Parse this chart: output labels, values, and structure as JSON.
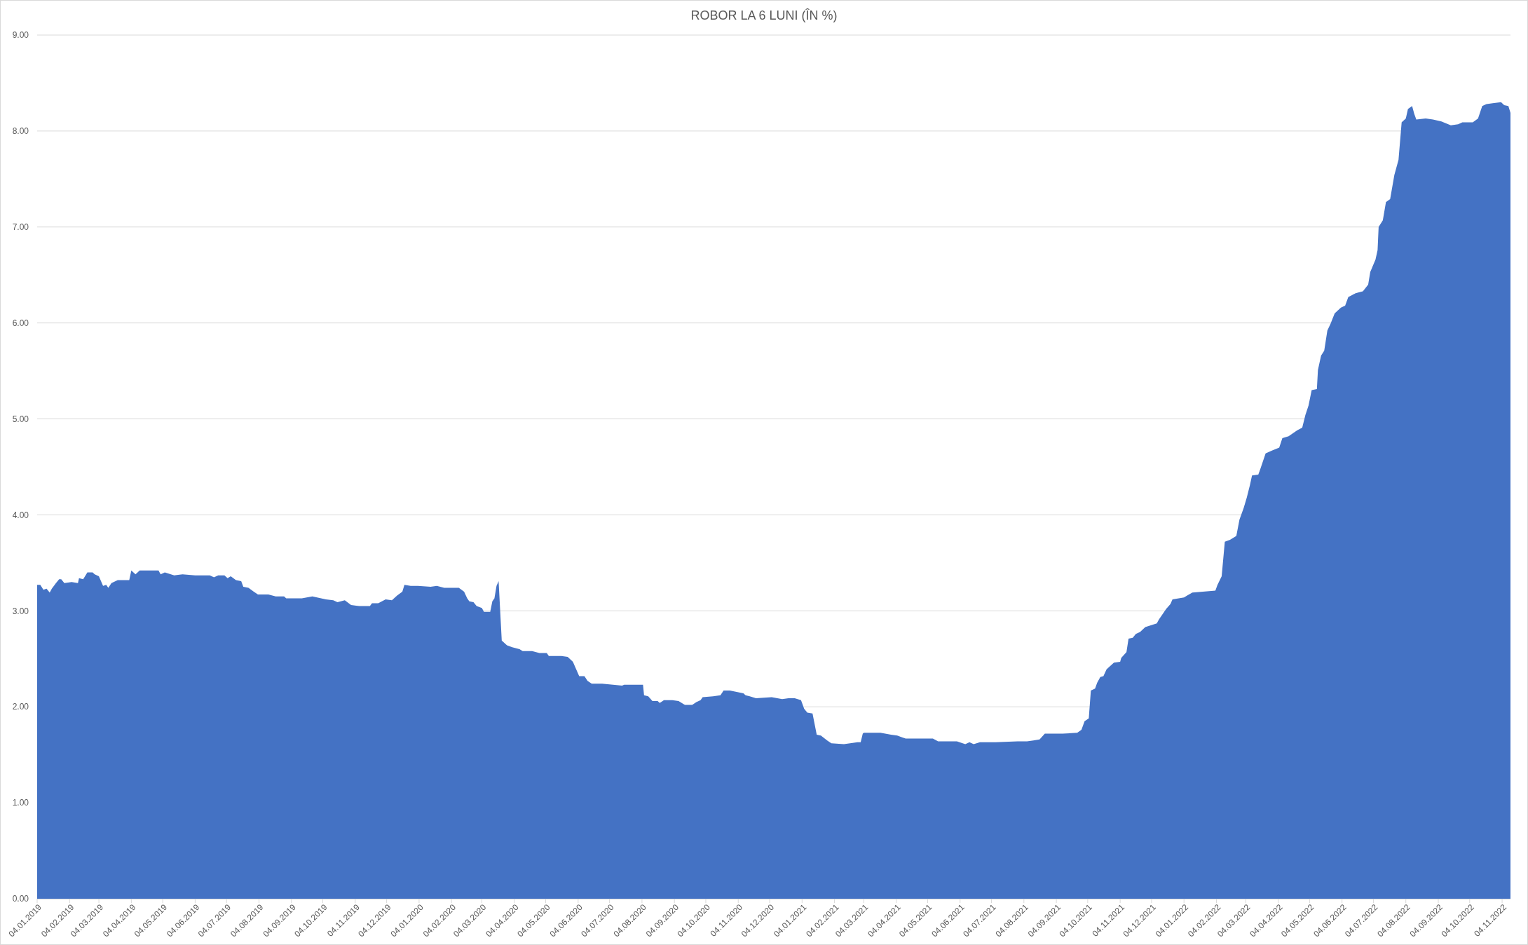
{
  "chart_data": {
    "type": "area",
    "title": "ROBOR LA 6 LUNI (ÎN %)",
    "color": "#4472c4",
    "grid": "y",
    "xlim": [
      "2019-01-04",
      "2022-11-12"
    ],
    "xticks": [
      {
        "value": "2019-01-04",
        "label": "04.01.2019"
      },
      {
        "value": "2019-02-04",
        "label": "04.02.2019"
      },
      {
        "value": "2019-03-04",
        "label": "04.03.2019"
      },
      {
        "value": "2019-04-04",
        "label": "04.04.2019"
      },
      {
        "value": "2019-05-04",
        "label": "04.05.2019"
      },
      {
        "value": "2019-06-04",
        "label": "04.06.2019"
      },
      {
        "value": "2019-07-04",
        "label": "04.07.2019"
      },
      {
        "value": "2019-08-04",
        "label": "04.08.2019"
      },
      {
        "value": "2019-09-04",
        "label": "04.09.2019"
      },
      {
        "value": "2019-10-04",
        "label": "04.10.2019"
      },
      {
        "value": "2019-11-04",
        "label": "04.11.2019"
      },
      {
        "value": "2019-12-04",
        "label": "04.12.2019"
      },
      {
        "value": "2020-01-04",
        "label": "04.01.2020"
      },
      {
        "value": "2020-02-04",
        "label": "04.02.2020"
      },
      {
        "value": "2020-03-04",
        "label": "04.03.2020"
      },
      {
        "value": "2020-04-04",
        "label": "04.04.2020"
      },
      {
        "value": "2020-05-04",
        "label": "04.05.2020"
      },
      {
        "value": "2020-06-04",
        "label": "04.06.2020"
      },
      {
        "value": "2020-07-04",
        "label": "04.07.2020"
      },
      {
        "value": "2020-08-04",
        "label": "04.08.2020"
      },
      {
        "value": "2020-09-04",
        "label": "04.09.2020"
      },
      {
        "value": "2020-10-04",
        "label": "04.10.2020"
      },
      {
        "value": "2020-11-04",
        "label": "04.11.2020"
      },
      {
        "value": "2020-12-04",
        "label": "04.12.2020"
      },
      {
        "value": "2021-01-04",
        "label": "04.01.2021"
      },
      {
        "value": "2021-02-04",
        "label": "04.02.2021"
      },
      {
        "value": "2021-03-04",
        "label": "04.03.2021"
      },
      {
        "value": "2021-04-04",
        "label": "04.04.2021"
      },
      {
        "value": "2021-05-04",
        "label": "04.05.2021"
      },
      {
        "value": "2021-06-04",
        "label": "04.06.2021"
      },
      {
        "value": "2021-07-04",
        "label": "04.07.2021"
      },
      {
        "value": "2021-08-04",
        "label": "04.08.2021"
      },
      {
        "value": "2021-09-04",
        "label": "04.09.2021"
      },
      {
        "value": "2021-10-04",
        "label": "04.10.2021"
      },
      {
        "value": "2021-11-04",
        "label": "04.11.2021"
      },
      {
        "value": "2021-12-04",
        "label": "04.12.2021"
      },
      {
        "value": "2022-01-04",
        "label": "04.01.2022"
      },
      {
        "value": "2022-02-04",
        "label": "04.02.2022"
      },
      {
        "value": "2022-03-04",
        "label": "04.03.2022"
      },
      {
        "value": "2022-04-04",
        "label": "04.04.2022"
      },
      {
        "value": "2022-05-04",
        "label": "04.05.2022"
      },
      {
        "value": "2022-06-04",
        "label": "04.06.2022"
      },
      {
        "value": "2022-07-04",
        "label": "04.07.2022"
      },
      {
        "value": "2022-08-04",
        "label": "04.08.2022"
      },
      {
        "value": "2022-09-04",
        "label": "04.09.2022"
      },
      {
        "value": "2022-10-04",
        "label": "04.10.2022"
      },
      {
        "value": "2022-11-04",
        "label": "04.11.2022"
      }
    ],
    "ylim": [
      0,
      9
    ],
    "yticks": [
      {
        "value": 0,
        "label": "0.00"
      },
      {
        "value": 1,
        "label": "1.00"
      },
      {
        "value": 2,
        "label": "2.00"
      },
      {
        "value": 3,
        "label": "3.00"
      },
      {
        "value": 4,
        "label": "4.00"
      },
      {
        "value": 5,
        "label": "5.00"
      },
      {
        "value": 6,
        "label": "6.00"
      },
      {
        "value": 7,
        "label": "7.00"
      },
      {
        "value": 8,
        "label": "8.00"
      },
      {
        "value": 9,
        "label": "9.00"
      }
    ],
    "x": [
      "2019-01-04",
      "2019-01-07",
      "2019-01-10",
      "2019-01-13",
      "2019-01-16",
      "2019-01-18",
      "2019-01-22",
      "2019-01-25",
      "2019-01-27",
      "2019-01-30",
      "2019-02-06",
      "2019-02-12",
      "2019-02-13",
      "2019-02-17",
      "2019-02-21",
      "2019-02-26",
      "2019-02-28",
      "2019-03-04",
      "2019-03-08",
      "2019-03-11",
      "2019-03-13",
      "2019-03-16",
      "2019-03-22",
      "2019-04-02",
      "2019-04-04",
      "2019-04-08",
      "2019-04-12",
      "2019-04-20",
      "2019-04-30",
      "2019-05-02",
      "2019-05-06",
      "2019-05-15",
      "2019-05-23",
      "2019-06-04",
      "2019-06-18",
      "2019-06-22",
      "2019-06-26",
      "2019-07-02",
      "2019-07-05",
      "2019-07-08",
      "2019-07-13",
      "2019-07-18",
      "2019-07-20",
      "2019-07-25",
      "2019-07-30",
      "2019-08-03",
      "2019-08-13",
      "2019-08-20",
      "2019-08-28",
      "2019-08-30",
      "2019-09-14",
      "2019-09-24",
      "2019-10-07",
      "2019-10-14",
      "2019-10-18",
      "2019-10-25",
      "2019-10-31",
      "2019-11-08",
      "2019-11-18",
      "2019-11-20",
      "2019-11-26",
      "2019-12-03",
      "2019-12-09",
      "2019-12-14",
      "2019-12-19",
      "2019-12-21",
      "2019-12-27",
      "2020-01-03",
      "2020-01-15",
      "2020-01-21",
      "2020-01-28",
      "2020-02-11",
      "2020-02-16",
      "2020-02-19",
      "2020-02-21",
      "2020-02-25",
      "2020-02-28",
      "2020-03-04",
      "2020-03-06",
      "2020-03-12",
      "2020-03-14",
      "2020-03-16",
      "2020-03-18",
      "2020-03-20",
      "2020-03-23",
      "2020-03-28",
      "2020-04-02",
      "2020-04-09",
      "2020-04-12",
      "2020-04-21",
      "2020-04-28",
      "2020-05-05",
      "2020-05-07",
      "2020-05-19",
      "2020-05-25",
      "2020-05-30",
      "2020-06-05",
      "2020-06-10",
      "2020-06-13",
      "2020-06-17",
      "2020-06-27",
      "2020-07-16",
      "2020-07-18",
      "2020-08-05",
      "2020-08-06",
      "2020-08-10",
      "2020-08-14",
      "2020-08-19",
      "2020-08-21",
      "2020-08-25",
      "2020-09-02",
      "2020-09-08",
      "2020-09-14",
      "2020-09-21",
      "2020-09-25",
      "2020-09-29",
      "2020-10-01",
      "2020-10-11",
      "2020-10-18",
      "2020-10-21",
      "2020-10-27",
      "2020-11-09",
      "2020-11-11",
      "2020-11-15",
      "2020-11-21",
      "2020-12-06",
      "2020-12-16",
      "2020-12-22",
      "2020-12-28",
      "2021-01-03",
      "2021-01-06",
      "2021-01-09",
      "2021-01-14",
      "2021-01-18",
      "2021-01-22",
      "2021-01-28",
      "2021-02-01",
      "2021-02-13",
      "2021-02-26",
      "2021-03-01",
      "2021-03-03",
      "2021-03-04",
      "2021-03-20",
      "2021-03-30",
      "2021-04-05",
      "2021-04-10",
      "2021-04-13",
      "2021-05-09",
      "2021-05-14",
      "2021-06-01",
      "2021-06-09",
      "2021-06-13",
      "2021-06-17",
      "2021-06-23",
      "2021-07-08",
      "2021-07-29",
      "2021-08-07",
      "2021-08-13",
      "2021-08-19",
      "2021-08-24",
      "2021-09-10",
      "2021-09-24",
      "2021-09-28",
      "2021-10-01",
      "2021-10-05",
      "2021-10-07",
      "2021-10-11",
      "2021-10-13",
      "2021-10-16",
      "2021-10-19",
      "2021-10-22",
      "2021-10-29",
      "2021-11-04",
      "2021-11-05",
      "2021-11-10",
      "2021-11-12",
      "2021-11-16",
      "2021-11-19",
      "2021-11-23",
      "2021-11-28",
      "2021-12-09",
      "2021-12-11",
      "2021-12-18",
      "2021-12-22",
      "2021-12-24",
      "2021-12-30",
      "2022-01-04",
      "2022-01-07",
      "2022-01-12",
      "2022-01-22",
      "2022-02-03",
      "2022-02-05",
      "2022-02-09",
      "2022-02-12",
      "2022-02-17",
      "2022-02-23",
      "2022-02-26",
      "2022-03-02",
      "2022-03-05",
      "2022-03-08",
      "2022-03-10",
      "2022-03-16",
      "2022-03-18",
      "2022-03-23",
      "2022-03-29",
      "2022-04-05",
      "2022-04-08",
      "2022-04-14",
      "2022-04-22",
      "2022-04-27",
      "2022-04-30",
      "2022-05-03",
      "2022-05-06",
      "2022-05-11",
      "2022-05-12",
      "2022-05-15",
      "2022-05-18",
      "2022-05-21",
      "2022-05-24",
      "2022-05-28",
      "2022-06-03",
      "2022-06-07",
      "2022-06-10",
      "2022-06-17",
      "2022-06-24",
      "2022-06-29",
      "2022-07-01",
      "2022-07-06",
      "2022-07-08",
      "2022-07-09",
      "2022-07-13",
      "2022-07-16",
      "2022-07-20",
      "2022-07-24",
      "2022-07-28",
      "2022-07-31",
      "2022-08-04",
      "2022-08-06",
      "2022-08-10",
      "2022-08-12",
      "2022-08-14",
      "2022-08-23",
      "2022-08-30",
      "2022-09-07",
      "2022-09-16",
      "2022-09-23",
      "2022-09-27",
      "2022-10-07",
      "2022-10-12",
      "2022-10-16",
      "2022-10-20",
      "2022-10-26",
      "2022-11-03",
      "2022-11-06",
      "2022-11-10",
      "2022-11-12"
    ],
    "values": [
      3.27,
      3.27,
      3.22,
      3.23,
      3.19,
      3.23,
      3.29,
      3.33,
      3.33,
      3.29,
      3.3,
      3.29,
      3.34,
      3.33,
      3.4,
      3.4,
      3.38,
      3.36,
      3.26,
      3.27,
      3.24,
      3.29,
      3.32,
      3.32,
      3.42,
      3.38,
      3.42,
      3.42,
      3.42,
      3.38,
      3.4,
      3.37,
      3.38,
      3.37,
      3.37,
      3.35,
      3.37,
      3.37,
      3.34,
      3.36,
      3.32,
      3.31,
      3.25,
      3.24,
      3.2,
      3.17,
      3.17,
      3.15,
      3.15,
      3.13,
      3.13,
      3.15,
      3.12,
      3.11,
      3.09,
      3.11,
      3.06,
      3.05,
      3.05,
      3.08,
      3.08,
      3.12,
      3.11,
      3.16,
      3.2,
      3.27,
      3.26,
      3.26,
      3.25,
      3.26,
      3.24,
      3.24,
      3.2,
      3.13,
      3.1,
      3.09,
      3.05,
      3.03,
      2.99,
      2.99,
      3.1,
      3.13,
      3.26,
      3.31,
      2.69,
      2.64,
      2.62,
      2.6,
      2.58,
      2.58,
      2.56,
      2.56,
      2.53,
      2.53,
      2.52,
      2.47,
      2.32,
      2.32,
      2.27,
      2.24,
      2.24,
      2.22,
      2.23,
      2.23,
      2.12,
      2.11,
      2.06,
      2.06,
      2.04,
      2.07,
      2.07,
      2.06,
      2.02,
      2.02,
      2.05,
      2.07,
      2.1,
      2.11,
      2.12,
      2.17,
      2.17,
      2.14,
      2.12,
      2.11,
      2.09,
      2.1,
      2.08,
      2.09,
      2.09,
      2.07,
      1.98,
      1.94,
      1.93,
      1.71,
      1.7,
      1.65,
      1.62,
      1.61,
      1.63,
      1.63,
      1.72,
      1.73,
      1.73,
      1.71,
      1.7,
      1.68,
      1.67,
      1.67,
      1.64,
      1.64,
      1.61,
      1.63,
      1.61,
      1.63,
      1.63,
      1.64,
      1.64,
      1.65,
      1.66,
      1.72,
      1.72,
      1.73,
      1.76,
      1.85,
      1.88,
      2.17,
      2.19,
      2.25,
      2.31,
      2.32,
      2.39,
      2.46,
      2.47,
      2.51,
      2.57,
      2.71,
      2.72,
      2.76,
      2.78,
      2.83,
      2.87,
      2.91,
      3.02,
      3.07,
      3.12,
      3.13,
      3.14,
      3.16,
      3.19,
      3.2,
      3.21,
      3.27,
      3.36,
      3.72,
      3.74,
      3.78,
      3.95,
      4.07,
      4.18,
      4.31,
      4.41,
      4.42,
      4.48,
      4.64,
      4.67,
      4.7,
      4.8,
      4.82,
      4.88,
      4.91,
      5.04,
      5.14,
      5.3,
      5.31,
      5.51,
      5.66,
      5.71,
      5.92,
      5.99,
      6.1,
      6.16,
      6.18,
      6.27,
      6.31,
      6.33,
      6.4,
      6.53,
      6.66,
      6.76,
      7.0,
      7.07,
      7.26,
      7.29,
      7.54,
      7.7,
      8.09,
      8.13,
      8.23,
      8.26,
      8.18,
      8.12,
      8.13,
      8.12,
      8.1,
      8.06,
      8.07,
      8.09,
      8.09,
      8.13,
      8.26,
      8.28,
      8.29,
      8.3,
      8.27,
      8.26,
      8.19
    ]
  }
}
